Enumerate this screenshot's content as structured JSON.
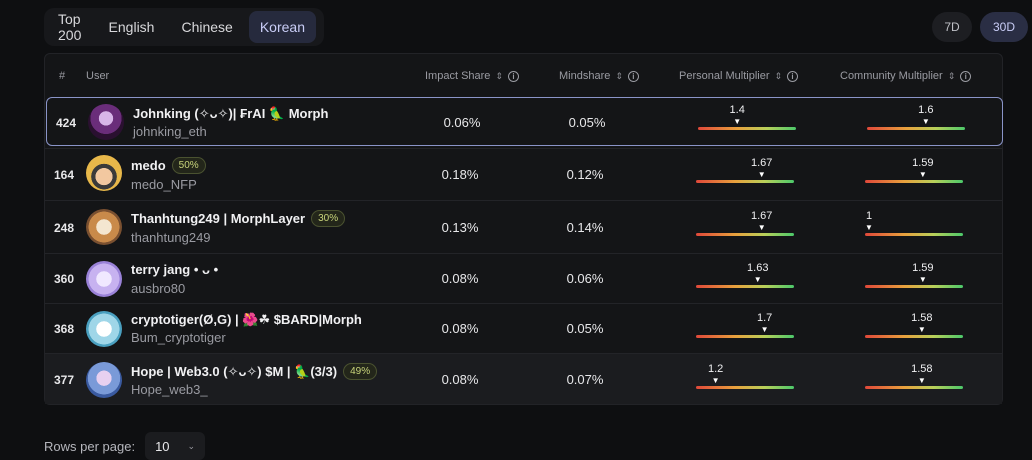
{
  "tabs": [
    "Top 200",
    "English",
    "Chinese",
    "Korean"
  ],
  "periods": [
    "7D",
    "30D"
  ],
  "columns": {
    "rank": "#",
    "user": "User",
    "impact": "Impact Share",
    "mindshare": "Mindshare",
    "personal": "Personal Multiplier",
    "community": "Community Multiplier"
  },
  "rows": [
    {
      "rank": "424",
      "name": "Johnking (✧ᴗ✧)| ₣rAI 🦜 Morph",
      "badge": "",
      "handle": "johnking_eth",
      "impact": "0.06%",
      "mindshare": "0.05%",
      "personal": "1.4",
      "community": "1.6",
      "personal_pos": 0.4,
      "community_pos": 0.6
    },
    {
      "rank": "164",
      "name": "medo",
      "badge": "50%",
      "handle": "medo_NFP",
      "impact": "0.18%",
      "mindshare": "0.12%",
      "personal": "1.67",
      "community": "1.59",
      "personal_pos": 0.67,
      "community_pos": 0.59
    },
    {
      "rank": "248",
      "name": "Thanhtung249 | MorphLayer",
      "badge": "30%",
      "handle": "thanhtung249",
      "impact": "0.13%",
      "mindshare": "0.14%",
      "personal": "1.67",
      "community": "1",
      "personal_pos": 0.67,
      "community_pos": 0.02
    },
    {
      "rank": "360",
      "name": "terry jang • ᴗ •",
      "badge": "",
      "handle": "ausbro80",
      "impact": "0.08%",
      "mindshare": "0.06%",
      "personal": "1.63",
      "community": "1.59",
      "personal_pos": 0.63,
      "community_pos": 0.59
    },
    {
      "rank": "368",
      "name": "cryptotiger(Ø,G) | 🌺☘ $BARD|Morph",
      "badge": "",
      "handle": "Bum_cryptotiger",
      "impact": "0.08%",
      "mindshare": "0.05%",
      "personal": "1.7",
      "community": "1.58",
      "personal_pos": 0.7,
      "community_pos": 0.58
    },
    {
      "rank": "377",
      "name": "Hope |  Web3.0 (✧ᴗ✧) $M | 🦜(3/3)",
      "badge": "49%",
      "handle": "Hope_web3_",
      "impact": "0.08%",
      "mindshare": "0.07%",
      "personal": "1.2",
      "community": "1.58",
      "personal_pos": 0.2,
      "community_pos": 0.58
    }
  ],
  "footer": {
    "label": "Rows per page:",
    "value": "10"
  },
  "colors": {
    "accent": "#c9cdf6",
    "highlight_border": "#8a94c8",
    "badge": "#c8d47a"
  }
}
